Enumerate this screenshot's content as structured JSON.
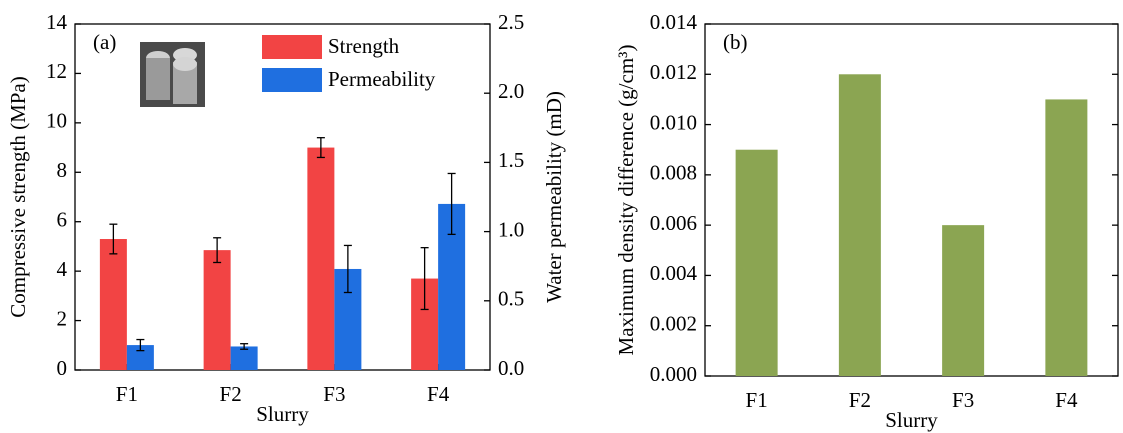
{
  "chart_data": [
    {
      "type": "bar",
      "annotation": "(a)",
      "x_label": "Slurry",
      "y_label": "Compressive strength (MPa)",
      "y2_label": "Water permeability (mD)",
      "categories": [
        "F1",
        "F2",
        "F3",
        "F4"
      ],
      "series": [
        {
          "name": "Strength",
          "color": "#f24444",
          "values": [
            5.3,
            4.85,
            9.0,
            3.7
          ],
          "errors": [
            0.6,
            0.5,
            0.4,
            1.25
          ]
        },
        {
          "name": "Permeability",
          "color": "#1f6fe0",
          "axis": "y2",
          "values": [
            0.18,
            0.17,
            0.73,
            1.2
          ],
          "errors": [
            0.04,
            0.02,
            0.17,
            0.22
          ]
        }
      ],
      "ylim": [
        0,
        14
      ],
      "yticks": [
        0,
        2,
        4,
        6,
        8,
        10,
        12,
        14
      ],
      "y2lim": [
        0,
        2.5
      ],
      "y2ticks": [
        {
          "value": 0,
          "label": "0.0"
        },
        0.5,
        {
          "value": 1,
          "label": "1.0"
        },
        1.5,
        {
          "value": 2,
          "label": "2.0"
        },
        2.5
      ]
    },
    {
      "type": "bar",
      "annotation": "(b)",
      "x_label": "Slurry",
      "y_label": "Maximum density difference (g/cm³)",
      "categories": [
        "F1",
        "F2",
        "F3",
        "F4"
      ],
      "series": [
        {
          "color": "#8ba552",
          "values": [
            0.009,
            0.012,
            0.006,
            0.011
          ]
        }
      ],
      "ylim": [
        0,
        0.014
      ],
      "yticks": [
        {
          "value": 0,
          "label": "0.000"
        },
        0.002,
        0.004,
        0.006,
        0.008,
        {
          "value": 0.01,
          "label": "0.010"
        },
        0.012,
        0.014
      ]
    }
  ]
}
